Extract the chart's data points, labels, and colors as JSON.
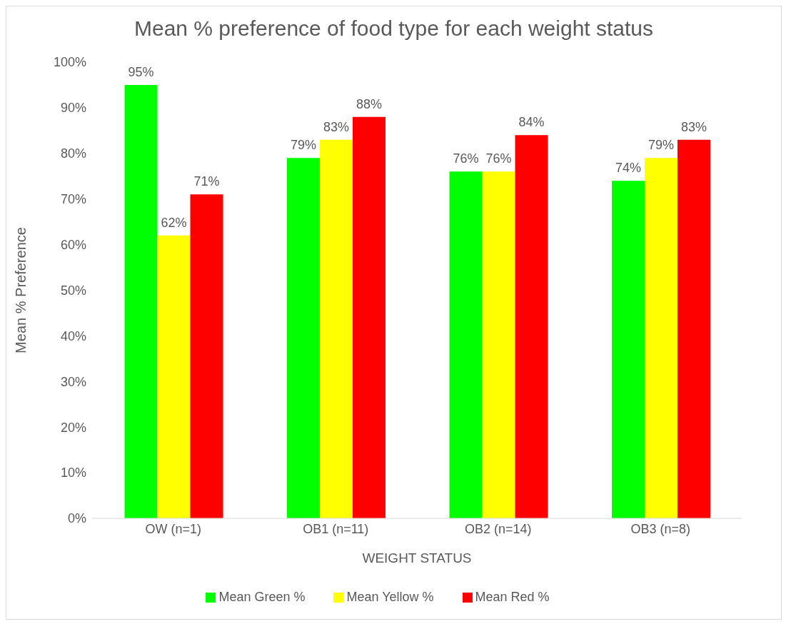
{
  "chart_data": {
    "type": "bar",
    "title": "Mean % preference of food type for each weight status",
    "xlabel": "WEIGHT STATUS",
    "ylabel": "Mean % Preference",
    "categories": [
      "OW (n=1)",
      "OB1 (n=11)",
      "OB2 (n=14)",
      "OB3 (n=8)"
    ],
    "series": [
      {
        "name": "Mean Green %",
        "color": "#00ff00",
        "values": [
          95,
          79,
          76,
          74
        ],
        "value_labels": [
          "95%",
          "79%",
          "76%",
          "74%"
        ]
      },
      {
        "name": "Mean Yellow %",
        "color": "#ffff00",
        "values": [
          62,
          83,
          76,
          79
        ],
        "value_labels": [
          "62%",
          "83%",
          "76%",
          "79%"
        ]
      },
      {
        "name": "Mean Red %",
        "color": "#ff0000",
        "values": [
          71,
          88,
          84,
          83
        ],
        "value_labels": [
          "71%",
          "88%",
          "84%",
          "83%"
        ]
      }
    ],
    "ylim": [
      0,
      100
    ],
    "yticks": [
      {
        "value": 0,
        "label": "0%"
      },
      {
        "value": 10,
        "label": "10%"
      },
      {
        "value": 20,
        "label": "20%"
      },
      {
        "value": 30,
        "label": "30%"
      },
      {
        "value": 40,
        "label": "40%"
      },
      {
        "value": 50,
        "label": "50%"
      },
      {
        "value": 60,
        "label": "60%"
      },
      {
        "value": 70,
        "label": "70%"
      },
      {
        "value": 80,
        "label": "80%"
      },
      {
        "value": 90,
        "label": "90%"
      },
      {
        "value": 100,
        "label": "100%"
      }
    ],
    "grid": false,
    "legend": "bottom"
  }
}
